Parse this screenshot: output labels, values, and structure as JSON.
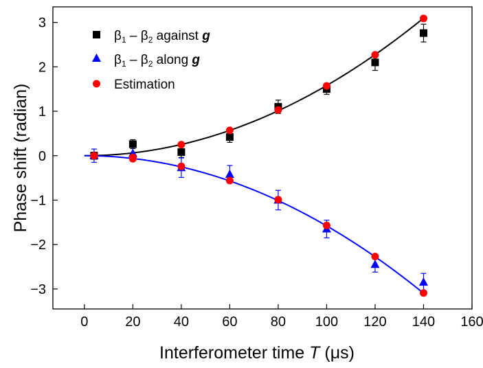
{
  "chart_data": {
    "type": "scatter",
    "xlabel": "Interferometer time ",
    "xlabel_var": "T",
    "xlabel_unit": " (μs)",
    "ylabel": "Phase shift (radian)",
    "xlim": [
      -13,
      160
    ],
    "ylim": [
      -3.45,
      3.35
    ],
    "xticks": [
      0,
      20,
      40,
      60,
      80,
      100,
      120,
      140,
      160
    ],
    "xtick_labels": [
      "0",
      "20",
      "40",
      "60",
      "80",
      "100",
      "120",
      "140",
      "160"
    ],
    "yticks": [
      -3,
      -2,
      -1,
      0,
      1,
      2,
      3
    ],
    "ytick_labels": [
      "−3",
      "−2",
      "−1",
      "0",
      "1",
      "2",
      "3"
    ],
    "grid": false,
    "legend_position": "top-left",
    "series": [
      {
        "name": "against",
        "legend": {
          "beta": "β",
          "sub1": "1",
          "dash": " – ",
          "sub2": "2",
          "rest": " against ",
          "g": "g"
        },
        "marker": "square",
        "color": "#000000",
        "x": [
          4,
          20,
          40,
          60,
          80,
          100,
          120,
          140
        ],
        "y": [
          0.0,
          0.26,
          0.08,
          0.42,
          1.1,
          1.5,
          2.1,
          2.76
        ],
        "yerr": [
          0.08,
          0.1,
          0.12,
          0.12,
          0.15,
          0.12,
          0.18,
          0.2
        ]
      },
      {
        "name": "along",
        "legend": {
          "beta": "β",
          "sub1": "1",
          "dash": " – ",
          "sub2": "2",
          "rest": " along ",
          "g": "g"
        },
        "marker": "triangle",
        "color": "#0000ff",
        "x": [
          4,
          20,
          40,
          60,
          80,
          100,
          120,
          140
        ],
        "y": [
          0.0,
          0.05,
          -0.27,
          -0.42,
          -1.0,
          -1.65,
          -2.45,
          -2.85
        ],
        "yerr": [
          0.15,
          0.15,
          0.22,
          0.2,
          0.22,
          0.2,
          0.17,
          0.2
        ]
      },
      {
        "name": "Estimation",
        "legend": {
          "text": "Estimation"
        },
        "marker": "circle",
        "color": "#ff0000",
        "x": [
          4,
          20,
          40,
          60,
          80,
          100,
          120,
          140
        ],
        "y": [
          0.0,
          -0.04,
          0.25,
          0.57,
          1.03,
          1.57,
          2.27,
          3.09
        ],
        "y_lower": [
          0.0,
          -0.07,
          -0.24,
          -0.56,
          -0.99,
          -1.57,
          -2.27,
          -3.09
        ]
      }
    ],
    "fit_curves": [
      {
        "color": "#000000",
        "coef": 0.000158,
        "direction": 1
      },
      {
        "color": "#0000ff",
        "coef": 0.000158,
        "direction": -1
      }
    ]
  }
}
